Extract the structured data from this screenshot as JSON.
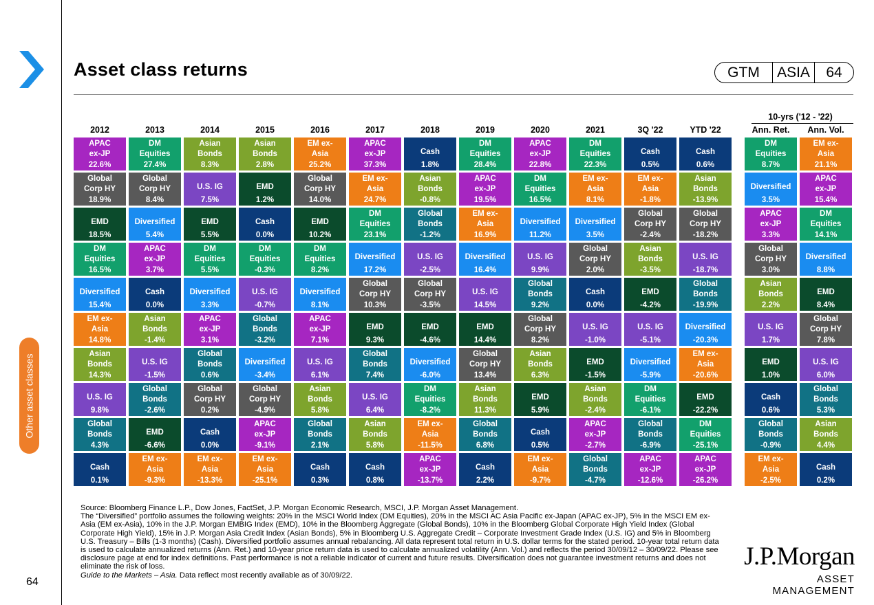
{
  "header": {
    "title": "Asset class returns",
    "badge": [
      "GTM",
      "ASIA",
      "64"
    ]
  },
  "sidebar": {
    "tab_label": "Other asset classes",
    "page_number": "64"
  },
  "table": {
    "years": [
      "2012",
      "2013",
      "2014",
      "2015",
      "2016",
      "2017",
      "2018",
      "2019",
      "2020",
      "2021",
      "3Q '22",
      "YTD '22"
    ],
    "ten_year_header": "10-yrs ('12 - '22)",
    "ten_year_cols": [
      "Ann. Ret.",
      "Ann. Vol."
    ],
    "columns": [
      [
        [
          "APAC ex-JP",
          "22.6%"
        ],
        [
          "Global Corp HY",
          "18.9%"
        ],
        [
          "EMD",
          "18.5%"
        ],
        [
          "DM Equities",
          "16.5%"
        ],
        [
          "Diversified",
          "15.4%"
        ],
        [
          "EM ex-Asia",
          "14.8%"
        ],
        [
          "Asian Bonds",
          "14.3%"
        ],
        [
          "U.S. IG",
          "9.8%"
        ],
        [
          "Global Bonds",
          "4.3%"
        ],
        [
          "Cash",
          "0.1%"
        ]
      ],
      [
        [
          "DM Equities",
          "27.4%"
        ],
        [
          "Global Corp HY",
          "8.4%"
        ],
        [
          "Diversified",
          "5.4%"
        ],
        [
          "APAC ex-JP",
          "3.7%"
        ],
        [
          "Cash",
          "0.0%"
        ],
        [
          "Asian Bonds",
          "-1.4%"
        ],
        [
          "U.S. IG",
          "-1.5%"
        ],
        [
          "Global Bonds",
          "-2.6%"
        ],
        [
          "EMD",
          "-6.6%"
        ],
        [
          "EM ex-Asia",
          "-9.3%"
        ]
      ],
      [
        [
          "Asian Bonds",
          "8.3%"
        ],
        [
          "U.S. IG",
          "7.5%"
        ],
        [
          "EMD",
          "5.5%"
        ],
        [
          "DM Equities",
          "5.5%"
        ],
        [
          "Diversified",
          "3.3%"
        ],
        [
          "APAC ex-JP",
          "3.1%"
        ],
        [
          "Global Bonds",
          "0.6%"
        ],
        [
          "Global Corp HY",
          "0.2%"
        ],
        [
          "Cash",
          "0.0%"
        ],
        [
          "EM ex-Asia",
          "-13.3%"
        ]
      ],
      [
        [
          "Asian Bonds",
          "2.8%"
        ],
        [
          "EMD",
          "1.2%"
        ],
        [
          "Cash",
          "0.0%"
        ],
        [
          "DM Equities",
          "-0.3%"
        ],
        [
          "U.S. IG",
          "-0.7%"
        ],
        [
          "Global Bonds",
          "-3.2%"
        ],
        [
          "Diversified",
          "-3.4%"
        ],
        [
          "Global Corp HY",
          "-4.9%"
        ],
        [
          "APAC ex-JP",
          "-9.1%"
        ],
        [
          "EM ex-Asia",
          "-25.1%"
        ]
      ],
      [
        [
          "EM ex-Asia",
          "25.2%"
        ],
        [
          "Global Corp HY",
          "14.0%"
        ],
        [
          "EMD",
          "10.2%"
        ],
        [
          "DM Equities",
          "8.2%"
        ],
        [
          "Diversified",
          "8.1%"
        ],
        [
          "APAC ex-JP",
          "7.1%"
        ],
        [
          "U.S. IG",
          "6.1%"
        ],
        [
          "Asian Bonds",
          "5.8%"
        ],
        [
          "Global Bonds",
          "2.1%"
        ],
        [
          "Cash",
          "0.3%"
        ]
      ],
      [
        [
          "APAC ex-JP",
          "37.3%"
        ],
        [
          "EM ex-Asia",
          "24.7%"
        ],
        [
          "DM Equities",
          "23.1%"
        ],
        [
          "Diversified",
          "17.2%"
        ],
        [
          "Global Corp HY",
          "10.3%"
        ],
        [
          "EMD",
          "9.3%"
        ],
        [
          "Global Bonds",
          "7.4%"
        ],
        [
          "U.S. IG",
          "6.4%"
        ],
        [
          "Asian Bonds",
          "5.8%"
        ],
        [
          "Cash",
          "0.8%"
        ]
      ],
      [
        [
          "Cash",
          "1.8%"
        ],
        [
          "Asian Bonds",
          "-0.8%"
        ],
        [
          "Global Bonds",
          "-1.2%"
        ],
        [
          "U.S. IG",
          "-2.5%"
        ],
        [
          "Global Corp HY",
          "-3.5%"
        ],
        [
          "EMD",
          "-4.6%"
        ],
        [
          "Diversified",
          "-6.0%"
        ],
        [
          "DM Equities",
          "-8.2%"
        ],
        [
          "EM ex-Asia",
          "-11.5%"
        ],
        [
          "APAC ex-JP",
          "-13.7%"
        ]
      ],
      [
        [
          "DM Equities",
          "28.4%"
        ],
        [
          "APAC ex-JP",
          "19.5%"
        ],
        [
          "EM ex-Asia",
          "16.9%"
        ],
        [
          "Diversified",
          "16.4%"
        ],
        [
          "U.S. IG",
          "14.5%"
        ],
        [
          "EMD",
          "14.4%"
        ],
        [
          "Global Corp HY",
          "13.4%"
        ],
        [
          "Asian Bonds",
          "11.3%"
        ],
        [
          "Global Bonds",
          "6.8%"
        ],
        [
          "Cash",
          "2.2%"
        ]
      ],
      [
        [
          "APAC ex-JP",
          "22.8%"
        ],
        [
          "DM Equities",
          "16.5%"
        ],
        [
          "Diversified",
          "11.2%"
        ],
        [
          "U.S. IG",
          "9.9%"
        ],
        [
          "Global Bonds",
          "9.2%"
        ],
        [
          "Global Corp HY",
          "8.2%"
        ],
        [
          "Asian Bonds",
          "6.3%"
        ],
        [
          "EMD",
          "5.9%"
        ],
        [
          "Cash",
          "0.5%"
        ],
        [
          "EM ex-Asia",
          "-9.7%"
        ]
      ],
      [
        [
          "DM Equities",
          "22.3%"
        ],
        [
          "EM ex-Asia",
          "8.1%"
        ],
        [
          "Diversified",
          "3.5%"
        ],
        [
          "Global Corp HY",
          "2.0%"
        ],
        [
          "Cash",
          "0.0%"
        ],
        [
          "U.S. IG",
          "-1.0%"
        ],
        [
          "EMD",
          "-1.5%"
        ],
        [
          "Asian Bonds",
          "-2.4%"
        ],
        [
          "APAC ex-JP",
          "-2.7%"
        ],
        [
          "Global Bonds",
          "-4.7%"
        ]
      ],
      [
        [
          "Cash",
          "0.5%"
        ],
        [
          "EM ex-Asia",
          "-1.8%"
        ],
        [
          "Global Corp HY",
          "-2.4%"
        ],
        [
          "Asian Bonds",
          "-3.5%"
        ],
        [
          "EMD",
          "-4.2%"
        ],
        [
          "U.S. IG",
          "-5.1%"
        ],
        [
          "Diversified",
          "-5.9%"
        ],
        [
          "DM Equities",
          "-6.1%"
        ],
        [
          "Global Bonds",
          "-6.9%"
        ],
        [
          "APAC ex-JP",
          "-12.6%"
        ]
      ],
      [
        [
          "Cash",
          "0.6%"
        ],
        [
          "Asian Bonds",
          "-13.9%"
        ],
        [
          "Global Corp HY",
          "-18.2%"
        ],
        [
          "U.S. IG",
          "-18.7%"
        ],
        [
          "Global Bonds",
          "-19.9%"
        ],
        [
          "Diversified",
          "-20.3%"
        ],
        [
          "EM ex-Asia",
          "-20.6%"
        ],
        [
          "EMD",
          "-22.2%"
        ],
        [
          "DM Equities",
          "-25.1%"
        ],
        [
          "APAC ex-JP",
          "-26.2%"
        ]
      ]
    ],
    "ten_year": [
      [
        [
          "DM Equities",
          "8.7%"
        ],
        [
          "Diversified",
          "3.5%"
        ],
        [
          "APAC ex-JP",
          "3.3%"
        ],
        [
          "Global Corp HY",
          "3.0%"
        ],
        [
          "Asian Bonds",
          "2.2%"
        ],
        [
          "U.S. IG",
          "1.7%"
        ],
        [
          "EMD",
          "1.0%"
        ],
        [
          "Cash",
          "0.6%"
        ],
        [
          "Global Bonds",
          "-0.9%"
        ],
        [
          "EM ex-Asia",
          "-2.5%"
        ]
      ],
      [
        [
          "EM ex-Asia",
          "21.1%"
        ],
        [
          "APAC ex-JP",
          "15.4%"
        ],
        [
          "DM Equities",
          "14.1%"
        ],
        [
          "Diversified",
          "8.8%"
        ],
        [
          "EMD",
          "8.4%"
        ],
        [
          "Global Corp HY",
          "7.8%"
        ],
        [
          "U.S. IG",
          "6.0%"
        ],
        [
          "Global Bonds",
          "5.3%"
        ],
        [
          "Asian Bonds",
          "4.4%"
        ],
        [
          "Cash",
          "0.2%"
        ]
      ]
    ]
  },
  "asset_colors": {
    "APAC ex-JP": "#a626c1",
    "DM Equities": "#12a06c",
    "Asian Bonds": "#7ea42d",
    "EM ex-Asia": "#ee7e17",
    "Cash": "#0b3b7a",
    "Global Corp HY": "#595959",
    "U.S. IG": "#7b46c3",
    "EMD": "#0b4b2c",
    "Global Bonds": "#117285",
    "Diversified": "#1a8cf0"
  },
  "footer": {
    "source": "Source: Bloomberg Finance L.P., Dow Jones, FactSet, J.P. Morgan Economic Research, MSCI, J.P. Morgan Asset Management.",
    "note": "The “Diversified” portfolio assumes the following weights: 20% in the MSCI World Index (DM Equities), 20% in the MSCI AC Asia Pacific ex-Japan (APAC ex-JP), 5% in the MSCI EM ex-Asia (EM ex-Asia), 10% in the J.P. Morgan EMBIG Index (EMD), 10% in the Bloomberg Aggregate (Global Bonds), 10% in the Bloomberg Global Corporate High Yield Index (Global Corporate High Yield), 15% in J.P. Morgan Asia Credit Index (Asian Bonds), 5% in Bloomberg U.S. Aggregate Credit – Corporate Investment Grade Index (U.S. IG) and 5% in Bloomberg U.S. Treasury – Bills (1-3 months) (Cash). Diversified portfolio assumes annual rebalancing. All data represent total return in U.S. dollar terms for the stated period. 10-year total return data is used to calculate annualized returns (Ann. Ret.) and 10-year price return data is used to calculate annualized volatility (Ann. Vol.) and reflects the period 30/09/12 – 30/09/22. Please see disclosure page at end for index definitions. Past performance is not a reliable indicator of current and future results. Diversification does not guarantee investment returns and does not eliminate the risk of loss.",
    "guide_italic": "Guide to the Markets – Asia.",
    "guide_rest": " Data reflect most recently available as of 30/09/22."
  },
  "brand": {
    "logo": "J.P.Morgan",
    "sub": "ASSET MANAGEMENT"
  }
}
